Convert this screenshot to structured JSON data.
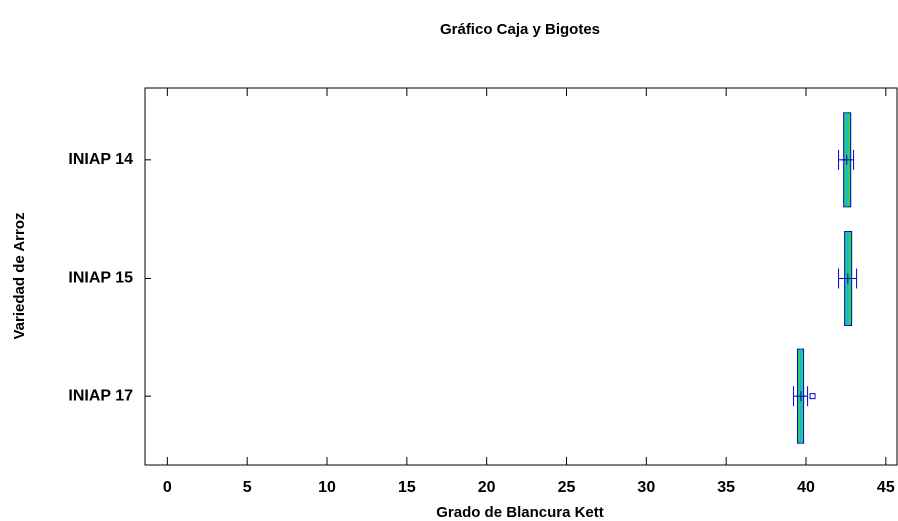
{
  "chart_data": {
    "type": "box",
    "title": "Gráfico Caja y Bigotes",
    "x_label": "Grado de Blancura Kett",
    "y_label": "Variedad de Arroz",
    "categories": [
      "INIAP 14",
      "INIAP 15",
      "INIAP 17"
    ],
    "min": [
      42.04,
      42.04,
      39.22
    ],
    "q1": [
      42.36,
      42.42,
      39.47
    ],
    "median": [
      42.54,
      42.6,
      39.66
    ],
    "q3": [
      42.8,
      42.86,
      39.85
    ],
    "max": [
      42.98,
      43.17,
      40.1
    ],
    "mean": [
      42.55,
      42.62,
      39.68
    ],
    "outliers": [
      [],
      [],
      [
        40.41
      ]
    ],
    "box_color": "#33cc66",
    "line_color": "#0000cc",
    "xlim": [
      -1.4,
      45.7
    ],
    "xticks": [
      0,
      5,
      10,
      15,
      20,
      25,
      30,
      35,
      40,
      45
    ]
  }
}
